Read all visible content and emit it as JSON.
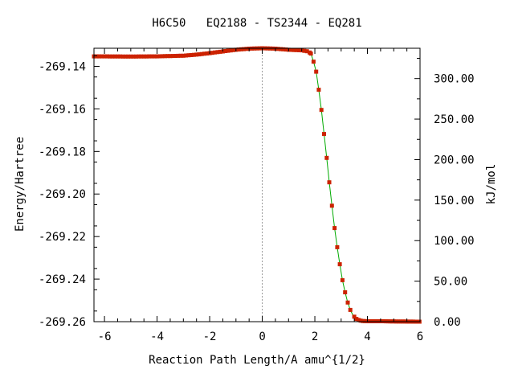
{
  "chart_data": {
    "type": "line",
    "title": "H6C50   EQ2188 - TS2344 - EQ281",
    "xlabel": "Reaction Path Length/A amu^{1/2}",
    "ylabel": "Energy/Hartree",
    "y2label": "kJ/mol",
    "xlim": [
      -6.4,
      6.0
    ],
    "ylim": [
      -269.26,
      -269.1315
    ],
    "y2lim": [
      0.0,
      337.4
    ],
    "x_ticks": [
      -6,
      -4,
      -2,
      0,
      2,
      4,
      6
    ],
    "x_tick_labels": [
      "-6",
      "-4",
      "-2",
      "0",
      "2",
      "4",
      "6"
    ],
    "y_ticks": [
      -269.14,
      -269.16,
      -269.18,
      -269.2,
      -269.22,
      -269.24,
      -269.26
    ],
    "y_tick_labels": [
      "-269.14",
      "-269.16",
      "-269.18",
      "-269.20",
      "-269.22",
      "-269.24",
      "-269.26"
    ],
    "y2_ticks": [
      300,
      250,
      200,
      150,
      100,
      50,
      0
    ],
    "y2_tick_labels": [
      "300.00",
      "250.00",
      "200.00",
      "150.00",
      "100.00",
      "50.00",
      "0.00"
    ],
    "ts_x": 0,
    "grid": false,
    "legend": "none",
    "series": [
      {
        "line_color": "#00aa00",
        "marker_color": "#cc2200",
        "x": [
          -6.4,
          -5.0,
          -4.0,
          -3.0,
          -2.5,
          -2.0,
          -1.5,
          -1.0,
          -0.5,
          0.0,
          0.5,
          1.0,
          1.5,
          1.75,
          1.85,
          1.95,
          2.05,
          2.15,
          2.25,
          2.35,
          2.45,
          2.55,
          2.65,
          2.75,
          2.85,
          2.95,
          3.05,
          3.15,
          3.25,
          3.35,
          3.45,
          3.6,
          3.8,
          4.0,
          4.5,
          5.0,
          6.0
        ],
        "y": [
          -269.1353,
          -269.1354,
          -269.1353,
          -269.135,
          -269.1345,
          -269.1338,
          -269.133,
          -269.1322,
          -269.1317,
          -269.1315,
          -269.1317,
          -269.1322,
          -269.1325,
          -269.133,
          -269.134,
          -269.1378,
          -269.1425,
          -269.151,
          -269.1605,
          -269.1718,
          -269.183,
          -269.1945,
          -269.2055,
          -269.216,
          -269.225,
          -269.233,
          -269.2405,
          -269.2462,
          -269.251,
          -269.2545,
          -269.257,
          -269.259,
          -269.2597,
          -269.2598,
          -269.2598,
          -269.2599,
          -269.26
        ]
      }
    ]
  }
}
